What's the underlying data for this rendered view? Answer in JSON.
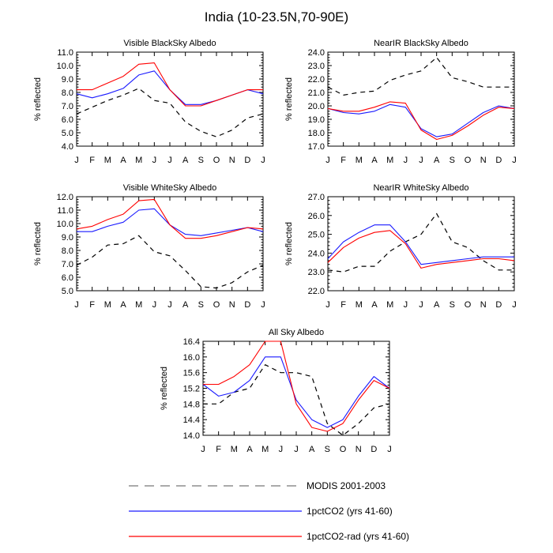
{
  "title": "India (10-23.5N,70-90E)",
  "colors": {
    "modis": "#000000",
    "co2": "#1a1aff",
    "co2rad": "#ff0000",
    "axis": "#000000"
  },
  "legend": [
    {
      "label": "MODIS 2001-2003",
      "style": "dashed",
      "color": "#000000"
    },
    {
      "label": "1pctCO2 (yrs 41-60)",
      "style": "solid",
      "color": "#1a1aff"
    },
    {
      "label": "1pctCO2-rad (yrs 41-60)",
      "style": "solid",
      "color": "#ff0000"
    }
  ],
  "chart_data": [
    {
      "type": "line",
      "title": "Visible BlackSky Albedo",
      "xlabel": "",
      "ylabel": "% reflected",
      "categories": [
        "J",
        "F",
        "M",
        "A",
        "M",
        "J",
        "J",
        "A",
        "S",
        "O",
        "N",
        "D",
        "J"
      ],
      "yticks": [
        "4.0",
        "5.0",
        "6.0",
        "7.0",
        "8.0",
        "9.0",
        "10.0",
        "11.0"
      ],
      "ylim": [
        4.0,
        11.0
      ],
      "series": [
        {
          "name": "MODIS 2001-2003",
          "values": [
            6.4,
            6.9,
            7.4,
            7.8,
            8.3,
            7.4,
            7.2,
            5.8,
            5.1,
            4.7,
            5.2,
            6.1,
            6.4
          ]
        },
        {
          "name": "1pctCO2 (yrs 41-60)",
          "values": [
            7.9,
            7.6,
            7.9,
            8.3,
            9.3,
            9.6,
            8.2,
            7.1,
            7.1,
            7.4,
            7.8,
            8.2,
            7.9
          ]
        },
        {
          "name": "1pctCO2-rad (yrs 41-60)",
          "values": [
            8.2,
            8.2,
            8.7,
            9.2,
            10.1,
            10.2,
            8.2,
            7.0,
            7.0,
            7.4,
            7.8,
            8.2,
            8.2
          ]
        }
      ]
    },
    {
      "type": "line",
      "title": "NearIR BlackSky Albedo",
      "xlabel": "",
      "ylabel": "% reflected",
      "categories": [
        "J",
        "F",
        "M",
        "A",
        "M",
        "J",
        "J",
        "A",
        "S",
        "O",
        "N",
        "D",
        "J"
      ],
      "yticks": [
        "17.0",
        "18.0",
        "19.0",
        "20.0",
        "21.0",
        "22.0",
        "23.0",
        "24.0"
      ],
      "ylim": [
        17.0,
        24.0
      ],
      "series": [
        {
          "name": "MODIS 2001-2003",
          "values": [
            21.4,
            20.8,
            21.0,
            21.1,
            21.9,
            22.3,
            22.6,
            23.6,
            22.1,
            21.8,
            21.4,
            21.4,
            21.4
          ]
        },
        {
          "name": "1pctCO2 (yrs 41-60)",
          "values": [
            19.8,
            19.5,
            19.4,
            19.6,
            20.1,
            19.9,
            18.3,
            17.7,
            17.9,
            18.7,
            19.5,
            20.0,
            19.8
          ]
        },
        {
          "name": "1pctCO2-rad (yrs 41-60)",
          "values": [
            19.8,
            19.6,
            19.6,
            19.9,
            20.3,
            20.2,
            18.2,
            17.5,
            17.8,
            18.5,
            19.3,
            19.9,
            19.8
          ]
        }
      ]
    },
    {
      "type": "line",
      "title": "Visible WhiteSky Albedo",
      "xlabel": "",
      "ylabel": "% reflected",
      "categories": [
        "J",
        "F",
        "M",
        "A",
        "M",
        "J",
        "J",
        "A",
        "S",
        "O",
        "N",
        "D",
        "J"
      ],
      "yticks": [
        "5.0",
        "6.0",
        "7.0",
        "8.0",
        "9.0",
        "10.0",
        "11.0",
        "12.0"
      ],
      "ylim": [
        5.0,
        12.0
      ],
      "series": [
        {
          "name": "MODIS 2001-2003",
          "values": [
            6.9,
            7.5,
            8.4,
            8.5,
            9.1,
            7.9,
            7.6,
            6.5,
            5.3,
            5.2,
            5.6,
            6.4,
            6.9
          ]
        },
        {
          "name": "1pctCO2 (yrs 41-60)",
          "values": [
            9.4,
            9.4,
            9.8,
            10.1,
            11.0,
            11.1,
            9.9,
            9.2,
            9.1,
            9.3,
            9.5,
            9.7,
            9.4
          ]
        },
        {
          "name": "1pctCO2-rad (yrs 41-60)",
          "values": [
            9.6,
            9.8,
            10.3,
            10.7,
            11.7,
            11.8,
            9.9,
            8.9,
            8.9,
            9.1,
            9.4,
            9.7,
            9.6
          ]
        }
      ]
    },
    {
      "type": "line",
      "title": "NearIR WhiteSky Albedo",
      "xlabel": "",
      "ylabel": "% reflected",
      "categories": [
        "J",
        "F",
        "M",
        "A",
        "M",
        "J",
        "J",
        "A",
        "S",
        "O",
        "N",
        "D",
        "J"
      ],
      "yticks": [
        "22.0",
        "23.0",
        "24.0",
        "25.0",
        "26.0",
        "27.0"
      ],
      "ylim": [
        22.0,
        27.0
      ],
      "series": [
        {
          "name": "MODIS 2001-2003",
          "values": [
            23.1,
            23.0,
            23.3,
            23.3,
            24.1,
            24.6,
            25.0,
            26.1,
            24.6,
            24.3,
            23.6,
            23.1,
            23.1
          ]
        },
        {
          "name": "1pctCO2 (yrs 41-60)",
          "values": [
            23.7,
            24.6,
            25.1,
            25.5,
            25.5,
            24.6,
            23.4,
            23.5,
            23.6,
            23.7,
            23.8,
            23.8,
            23.8
          ]
        },
        {
          "name": "1pctCO2-rad (yrs 41-60)",
          "values": [
            23.5,
            24.3,
            24.8,
            25.1,
            25.2,
            24.5,
            23.2,
            23.4,
            23.5,
            23.6,
            23.7,
            23.7,
            23.6
          ]
        }
      ]
    },
    {
      "type": "line",
      "title": "All Sky Albedo",
      "xlabel": "",
      "ylabel": "% reflected",
      "categories": [
        "J",
        "F",
        "M",
        "A",
        "M",
        "J",
        "J",
        "A",
        "S",
        "O",
        "N",
        "D",
        "J"
      ],
      "yticks": [
        "14.0",
        "14.4",
        "14.8",
        "15.2",
        "15.6",
        "16.0",
        "16.4"
      ],
      "ylim": [
        14.0,
        16.4
      ],
      "series": [
        {
          "name": "MODIS 2001-2003",
          "values": [
            14.8,
            14.8,
            15.1,
            15.2,
            15.8,
            15.6,
            15.6,
            15.5,
            14.3,
            14.0,
            14.3,
            14.7,
            14.8
          ]
        },
        {
          "name": "1pctCO2 (yrs 41-60)",
          "values": [
            15.3,
            15.0,
            15.1,
            15.4,
            16.0,
            16.0,
            14.9,
            14.4,
            14.2,
            14.4,
            15.0,
            15.5,
            15.2
          ]
        },
        {
          "name": "1pctCO2-rad (yrs 41-60)",
          "values": [
            15.3,
            15.3,
            15.5,
            15.8,
            16.4,
            16.4,
            14.8,
            14.2,
            14.1,
            14.3,
            14.9,
            15.4,
            15.2
          ]
        }
      ]
    }
  ]
}
